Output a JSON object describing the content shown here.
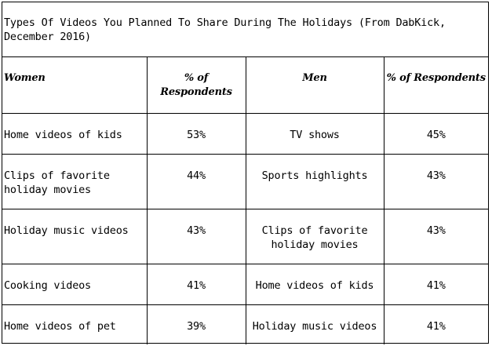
{
  "chart_data": {
    "type": "table",
    "title": "Types Of Videos You Planned To Share During The Holidays (From DabKick, December 2016)",
    "columns": [
      "Women",
      "% of Respondents",
      "Men",
      "% of Respondents"
    ],
    "rows": [
      [
        "Home videos of kids",
        "53%",
        "TV shows",
        "45%"
      ],
      [
        "Clips of favorite holiday movies",
        "44%",
        "Sports highlights",
        "43%"
      ],
      [
        "Holiday music videos",
        "43%",
        "Clips of favorite holiday movies",
        "43%"
      ],
      [
        "Cooking videos",
        "41%",
        "Home videos of kids",
        "41%"
      ],
      [
        "Home videos of pet",
        "39%",
        "Holiday music videos",
        "41%"
      ]
    ],
    "women": {
      "categories": [
        "Home videos of kids",
        "Clips of favorite holiday movies",
        "Holiday music videos",
        "Cooking videos",
        "Home videos of pet"
      ],
      "values": [
        53,
        44,
        43,
        41,
        39
      ]
    },
    "men": {
      "categories": [
        "TV shows",
        "Sports highlights",
        "Clips of favorite holiday movies",
        "Home videos of kids",
        "Holiday music videos"
      ],
      "values": [
        45,
        43,
        43,
        41,
        41
      ]
    }
  }
}
